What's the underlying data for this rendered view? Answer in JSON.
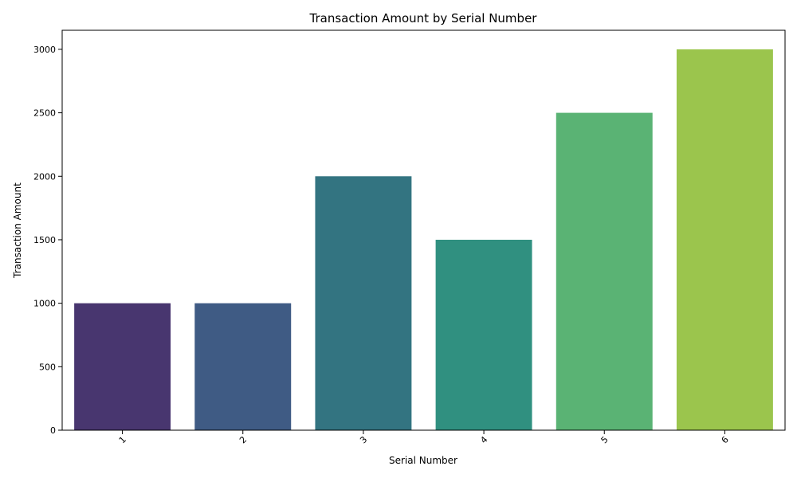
{
  "chart_data": {
    "type": "bar",
    "title": "Transaction Amount by Serial Number",
    "xlabel": "Serial Number",
    "ylabel": "Transaction Amount",
    "categories": [
      "1",
      "2",
      "3",
      "4",
      "5",
      "6"
    ],
    "values": [
      1000,
      1000,
      2000,
      1500,
      2500,
      3000
    ],
    "colors": [
      "#48366f",
      "#3f5b84",
      "#337481",
      "#309080",
      "#5ab374",
      "#9bc54d"
    ],
    "ylim": [
      0,
      3150
    ],
    "yticks": [
      0,
      500,
      1000,
      1500,
      2000,
      2500,
      3000
    ],
    "x_tick_rotation": 45,
    "grid": false,
    "legend": "none"
  }
}
